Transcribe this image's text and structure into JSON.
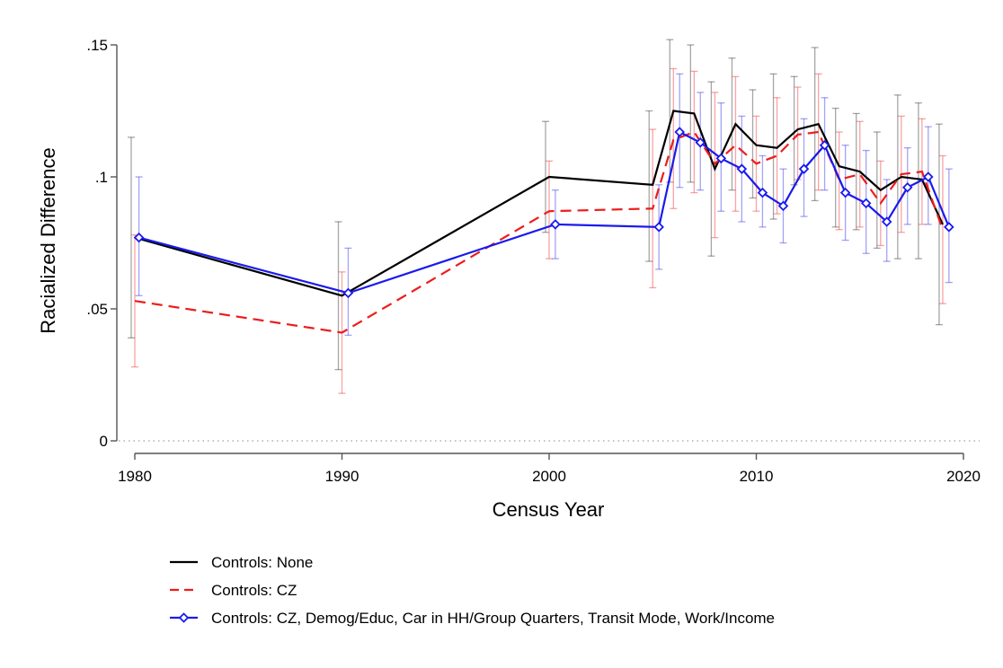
{
  "chart_data": {
    "type": "line",
    "title": "",
    "xlabel": "Census Year",
    "ylabel": "Racialized Difference",
    "xlim": [
      1980,
      2020
    ],
    "ylim": [
      0,
      0.15
    ],
    "x_ticks": [
      1980,
      1990,
      2000,
      2010,
      2020
    ],
    "x_tick_labels": [
      "1980",
      "1990",
      "2000",
      "2010",
      "2020"
    ],
    "y_ticks": [
      0,
      0.05,
      0.1,
      0.15
    ],
    "y_tick_labels": [
      "0",
      ".05",
      ".1",
      ".15"
    ],
    "zero_reference_line": "dotted",
    "grid": false,
    "legend_placement": "bottom",
    "series": [
      {
        "name": "Controls: None",
        "color": "#000000",
        "line_style": "solid",
        "marker": "none",
        "x": [
          1980,
          1990,
          2000,
          2005,
          2006,
          2007,
          2008,
          2009,
          2010,
          2011,
          2012,
          2013,
          2014,
          2015,
          2016,
          2017,
          2018,
          2019
        ],
        "y": [
          0.077,
          0.055,
          0.1,
          0.097,
          0.125,
          0.124,
          0.103,
          0.12,
          0.112,
          0.111,
          0.118,
          0.12,
          0.104,
          0.102,
          0.095,
          0.1,
          0.099,
          0.082
        ],
        "ci_low": [
          0.039,
          0.027,
          0.079,
          0.068,
          0.098,
          0.098,
          0.07,
          0.095,
          0.092,
          0.084,
          0.097,
          0.091,
          0.081,
          0.08,
          0.073,
          0.069,
          0.069,
          0.044
        ],
        "ci_high": [
          0.115,
          0.083,
          0.121,
          0.125,
          0.152,
          0.15,
          0.136,
          0.145,
          0.133,
          0.139,
          0.138,
          0.149,
          0.126,
          0.124,
          0.117,
          0.131,
          0.128,
          0.12
        ]
      },
      {
        "name": "Controls: CZ",
        "color": "#ee1c1c",
        "line_style": "dashed",
        "marker": "none",
        "x": [
          1980,
          1990,
          2000,
          2005,
          2006,
          2007,
          2008,
          2009,
          2010,
          2011,
          2012,
          2013,
          2014,
          2015,
          2016,
          2017,
          2018,
          2019
        ],
        "y": [
          0.053,
          0.041,
          0.087,
          0.088,
          0.114,
          0.117,
          0.105,
          0.112,
          0.105,
          0.108,
          0.116,
          0.117,
          0.099,
          0.101,
          0.09,
          0.101,
          0.102,
          0.08
        ],
        "ci_low": [
          0.028,
          0.018,
          0.069,
          0.058,
          0.088,
          0.094,
          0.077,
          0.087,
          0.087,
          0.086,
          0.099,
          0.095,
          0.08,
          0.081,
          0.074,
          0.079,
          0.082,
          0.052
        ],
        "ci_high": [
          0.078,
          0.064,
          0.106,
          0.118,
          0.141,
          0.14,
          0.132,
          0.138,
          0.123,
          0.13,
          0.134,
          0.139,
          0.117,
          0.121,
          0.106,
          0.123,
          0.122,
          0.108
        ]
      },
      {
        "name": "Controls: CZ, Demog/Educ, Car in HH/Group Quarters, Transit Mode, Work/Income",
        "color": "#1a1aee",
        "line_style": "solid",
        "marker": "diamond",
        "x": [
          1980.2,
          1990.3,
          2000.3,
          2005.3,
          2006.3,
          2007.3,
          2008.3,
          2009.3,
          2010.3,
          2011.3,
          2012.3,
          2013.3,
          2014.3,
          2015.3,
          2016.3,
          2017.3,
          2018.3,
          2019.3
        ],
        "y": [
          0.077,
          0.056,
          0.082,
          0.081,
          0.117,
          0.113,
          0.107,
          0.103,
          0.094,
          0.089,
          0.103,
          0.112,
          0.094,
          0.09,
          0.083,
          0.096,
          0.1,
          0.081
        ],
        "ci_low": [
          0.055,
          0.04,
          0.069,
          0.065,
          0.096,
          0.095,
          0.087,
          0.083,
          0.081,
          0.075,
          0.085,
          0.095,
          0.076,
          0.071,
          0.068,
          0.082,
          0.082,
          0.06
        ],
        "ci_high": [
          0.1,
          0.073,
          0.095,
          0.097,
          0.139,
          0.132,
          0.128,
          0.123,
          0.108,
          0.103,
          0.122,
          0.13,
          0.112,
          0.11,
          0.099,
          0.111,
          0.119,
          0.103
        ]
      }
    ]
  }
}
